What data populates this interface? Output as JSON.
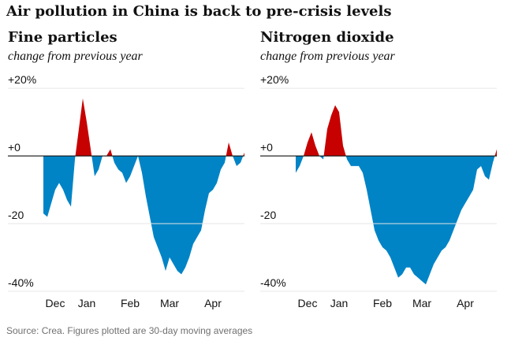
{
  "title": "Air pollution in China is back to pre-crisis levels",
  "source": "Source: Crea. Figures plotted are 30-day moving averages",
  "chart_data": [
    {
      "type": "area",
      "title": "Fine particles",
      "subtitle": "change from previous year",
      "positive_color": "#c70000",
      "negative_color": "#0084c6",
      "ylim": [
        -40.5,
        20.5
      ],
      "yticks": [
        {
          "value": 20,
          "label": "+20%"
        },
        {
          "value": 0,
          "label": "+0"
        },
        -20,
        {
          "value": -40,
          "label": "-40%"
        }
      ],
      "categories": [
        null,
        null,
        null,
        "Dec",
        null,
        null,
        null,
        null,
        null,
        null,
        null,
        "Jan",
        null,
        null,
        null,
        null,
        null,
        null,
        null,
        null,
        null,
        null,
        "Feb",
        null,
        null,
        null,
        null,
        null,
        null,
        null,
        null,
        null,
        "Mar",
        null,
        null,
        null,
        null,
        null,
        null,
        null,
        null,
        null,
        null,
        "Apr",
        null,
        null,
        null,
        null,
        null,
        null,
        null,
        null
      ],
      "values": [
        -17,
        -18,
        -14,
        -10,
        -8,
        -10,
        -13,
        -15,
        -1,
        8,
        17,
        10,
        2,
        -6,
        -4,
        0,
        0,
        2,
        -2,
        -4,
        -5,
        -8,
        -6,
        -3,
        0,
        -5,
        -12,
        -18,
        -24,
        -27,
        -30,
        -34,
        -30,
        -32,
        -34,
        -35,
        -33,
        -30,
        -26,
        -24,
        -22,
        -16,
        -11,
        -10,
        -8,
        -4,
        -2,
        4,
        0,
        -3,
        -2,
        1
      ]
    },
    {
      "type": "area",
      "title": "Nitrogen dioxide",
      "subtitle": "change from previous year",
      "positive_color": "#c70000",
      "negative_color": "#0084c6",
      "ylim": [
        -40.5,
        20.5
      ],
      "yticks": [
        {
          "value": 20,
          "label": "+20%"
        },
        {
          "value": 0,
          "label": "+0"
        },
        -20,
        {
          "value": -40,
          "label": "-40%"
        }
      ],
      "categories": [
        null,
        null,
        null,
        "Dec",
        null,
        null,
        null,
        null,
        null,
        null,
        null,
        "Jan",
        null,
        null,
        null,
        null,
        null,
        null,
        null,
        null,
        null,
        null,
        "Feb",
        null,
        null,
        null,
        null,
        null,
        null,
        null,
        null,
        null,
        "Mar",
        null,
        null,
        null,
        null,
        null,
        null,
        null,
        null,
        null,
        null,
        "Apr",
        null,
        null,
        null,
        null,
        null,
        null,
        null,
        null
      ],
      "values": [
        -5,
        -3,
        0,
        4,
        7,
        3,
        0,
        -1,
        8,
        12,
        15,
        13,
        3,
        -1,
        -3,
        -3,
        -3,
        -5,
        -10,
        -16,
        -22,
        -25,
        -27,
        -28,
        -30,
        -33,
        -36,
        -35,
        -33,
        -33,
        -35,
        -36,
        -37,
        -38,
        -35,
        -32,
        -30,
        -28,
        -27,
        -25,
        -22,
        -19,
        -16,
        -14,
        -12,
        -10,
        -4,
        -3,
        -6,
        -7,
        -2,
        2
      ]
    }
  ]
}
